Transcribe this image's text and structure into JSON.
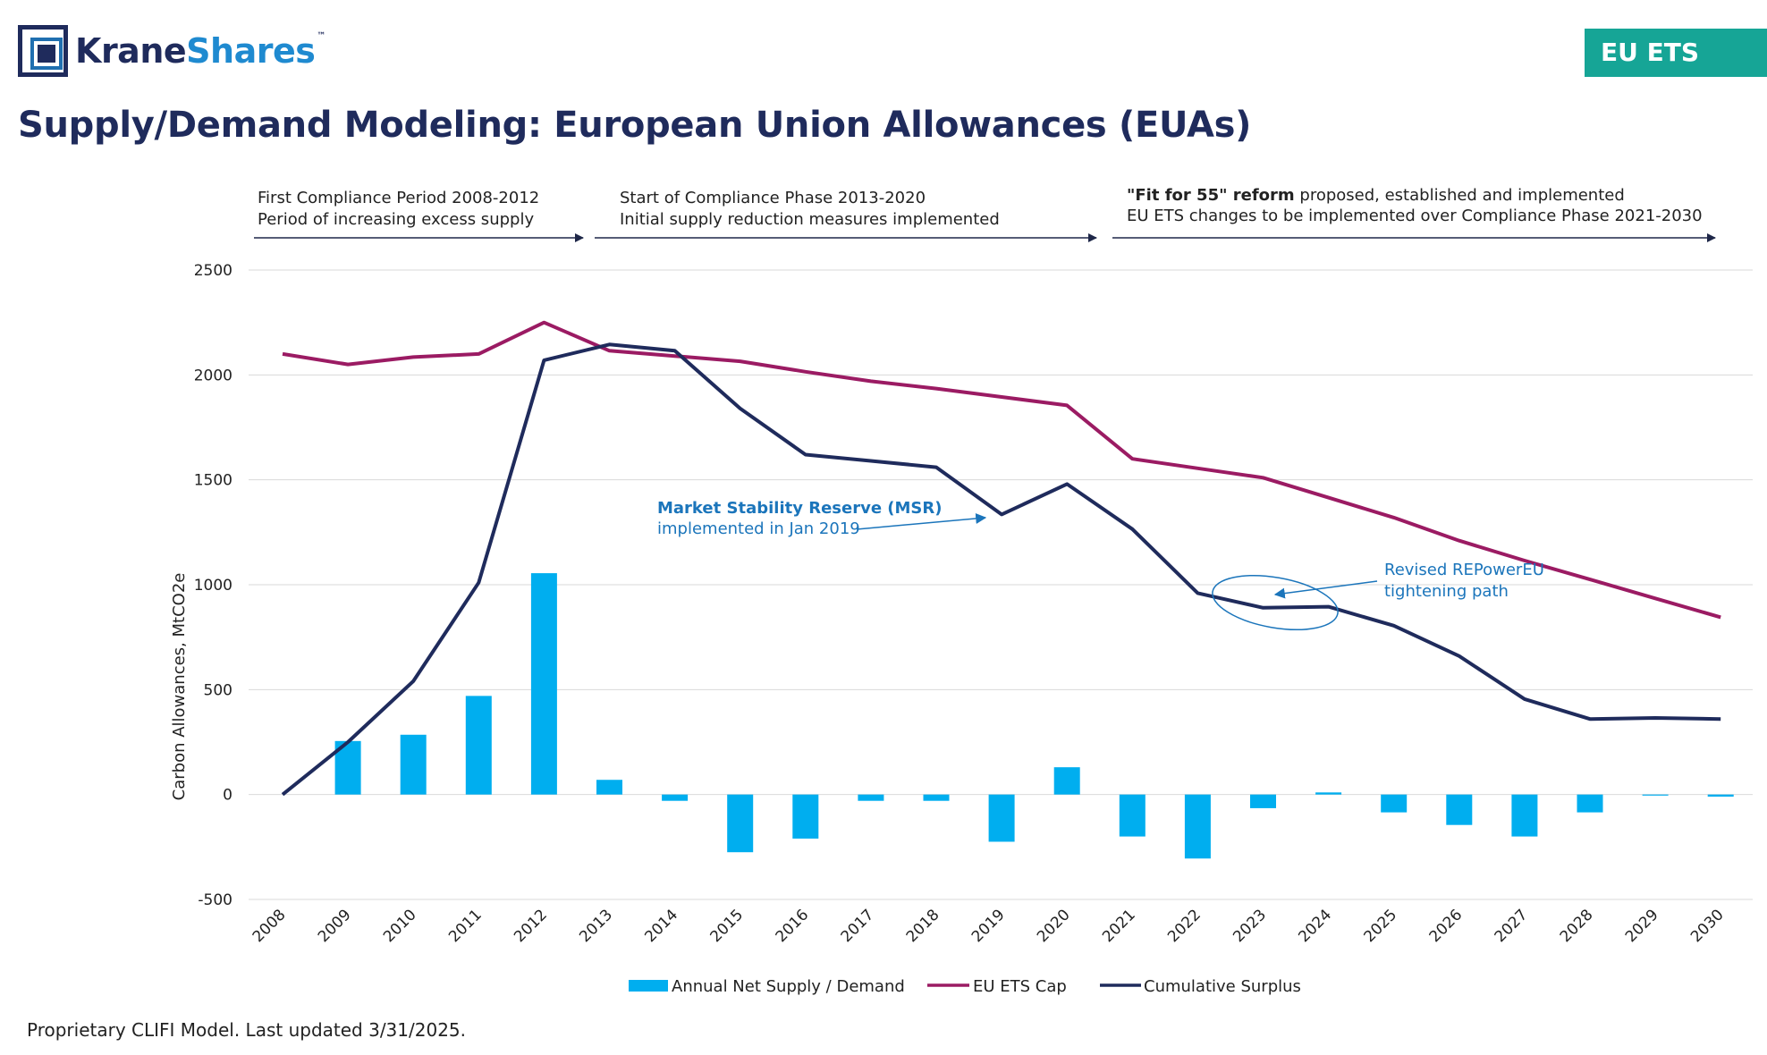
{
  "brand": {
    "logo_part1": "Krane",
    "logo_part2": "Shares",
    "logo_tm": "™"
  },
  "badge": "EU ETS",
  "page_title": "Supply/Demand Modeling: European Union Allowances (EUAs)",
  "footnote": "Proprietary CLIFI Model. Last updated 3/31/2025.",
  "colors": {
    "accent": "#16a596",
    "navy": "#1f2b5c",
    "cap": "#9b1b63",
    "bars": "#00aeef",
    "annotation": "#1b75bb"
  },
  "chart_data": {
    "type": "bar+line",
    "title": "",
    "xlabel": "",
    "ylabel": "Carbon Allowances, MtCO2e",
    "ylim": [
      -500,
      2500
    ],
    "yticks": [
      -500,
      0,
      500,
      1000,
      1500,
      2000,
      2500
    ],
    "grid": true,
    "legend_position": "bottom",
    "categories": [
      "2008",
      "2009",
      "2010",
      "2011",
      "2012",
      "2013",
      "2014",
      "2015",
      "2016",
      "2017",
      "2018",
      "2019",
      "2020",
      "2021",
      "2022",
      "2023",
      "2024",
      "2025",
      "2026",
      "2027",
      "2028",
      "2029",
      "2030"
    ],
    "series": [
      {
        "name": "Annual Net Supply / Demand",
        "kind": "bar",
        "color": "#00aeef",
        "values": [
          0,
          255,
          285,
          470,
          1055,
          70,
          -30,
          -275,
          -210,
          -30,
          -30,
          -225,
          130,
          -200,
          -305,
          -65,
          10,
          -85,
          -145,
          -200,
          -85,
          -5,
          -10
        ]
      },
      {
        "name": "EU ETS Cap",
        "kind": "line",
        "color": "#9b1b63",
        "values": [
          2100,
          2050,
          2085,
          2100,
          2250,
          2115,
          2090,
          2065,
          2015,
          1970,
          1935,
          1895,
          1855,
          1600,
          1555,
          1510,
          1415,
          1320,
          1210,
          1115,
          1025,
          935,
          845
        ]
      },
      {
        "name": "Cumulative Surplus",
        "kind": "line",
        "color": "#1f2b5c",
        "values": [
          0,
          250,
          540,
          1010,
          2070,
          2145,
          2115,
          1840,
          1620,
          1590,
          1560,
          1335,
          1480,
          1265,
          960,
          890,
          895,
          805,
          660,
          455,
          360,
          365,
          360
        ]
      }
    ],
    "phases": [
      {
        "line1": "First Compliance Period 2008-2012",
        "line1_bold": "",
        "line2": "Period of increasing excess supply"
      },
      {
        "line1": "Start of Compliance Phase 2013-2020",
        "line1_bold": "",
        "line2": "Initial supply reduction measures implemented"
      },
      {
        "line1": " proposed, established and implemented",
        "line1_bold": "\"Fit for 55\" reform",
        "line2": "EU ETS changes to be implemented over Compliance Phase 2021-2030"
      }
    ],
    "annotations": {
      "msr_line1": "Market Stability Reserve (MSR)",
      "msr_line2": "implemented in Jan 2019",
      "repower_line1": "Revised REPowerEU",
      "repower_line2": "tightening path"
    }
  }
}
